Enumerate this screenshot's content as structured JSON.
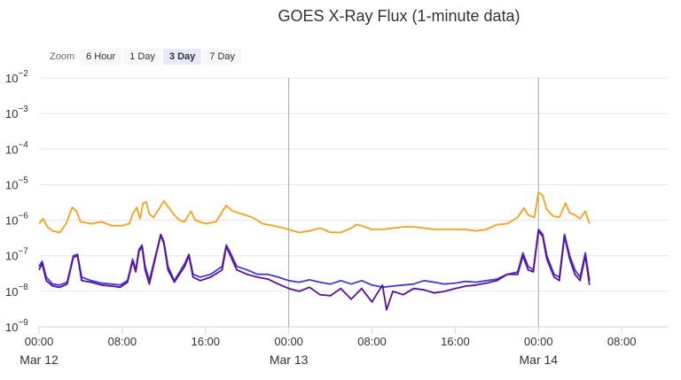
{
  "chart_data": {
    "type": "line",
    "title": "GOES X-Ray Flux (1-minute data)",
    "y_scale": "log",
    "ylim": [
      1e-09,
      0.01
    ],
    "y_ticks": [
      {
        "value": 1e-09,
        "base": "10",
        "exp": "−9"
      },
      {
        "value": 1e-08,
        "base": "10",
        "exp": "−8"
      },
      {
        "value": 1e-07,
        "base": "10",
        "exp": "−7"
      },
      {
        "value": 1e-06,
        "base": "10",
        "exp": "−6"
      },
      {
        "value": 1e-05,
        "base": "10",
        "exp": "−5"
      },
      {
        "value": 0.0001,
        "base": "10",
        "exp": "−4"
      },
      {
        "value": 0.001,
        "base": "10",
        "exp": "−3"
      },
      {
        "value": 0.01,
        "base": "10",
        "exp": "−2"
      }
    ],
    "x_ticks": [
      {
        "hour": 0,
        "label": "00:00",
        "date": "Mar 12"
      },
      {
        "hour": 8,
        "label": "08:00"
      },
      {
        "hour": 16,
        "label": "16:00"
      },
      {
        "hour": 24,
        "label": "00:00",
        "date": "Mar 13"
      },
      {
        "hour": 32,
        "label": "08:00"
      },
      {
        "hour": 40,
        "label": "16:00"
      },
      {
        "hour": 48,
        "label": "00:00",
        "date": "Mar 14"
      },
      {
        "hour": 56,
        "label": "08:00"
      }
    ],
    "day_boundaries": [
      24,
      48
    ],
    "xlim_hours": [
      0,
      60.5
    ],
    "series": [
      {
        "color": "#f4a21e",
        "values": [
          [
            0,
            8e-07
          ],
          [
            0.4,
            1.1e-06
          ],
          [
            0.8,
            6.5e-07
          ],
          [
            1.3,
            5e-07
          ],
          [
            2,
            4.5e-07
          ],
          [
            2.6,
            8e-07
          ],
          [
            3.2,
            2.3e-06
          ],
          [
            3.6,
            1.8e-06
          ],
          [
            4,
            9e-07
          ],
          [
            5,
            8e-07
          ],
          [
            6,
            9e-07
          ],
          [
            7,
            7e-07
          ],
          [
            8,
            7e-07
          ],
          [
            8.7,
            8e-07
          ],
          [
            9,
            1.5e-06
          ],
          [
            9.4,
            2.3e-06
          ],
          [
            9.7,
            1.1e-06
          ],
          [
            10,
            3e-06
          ],
          [
            10.3,
            3.3e-06
          ],
          [
            10.6,
            1.5e-06
          ],
          [
            11,
            1.2e-06
          ],
          [
            11.5,
            2e-06
          ],
          [
            12,
            3.5e-06
          ],
          [
            12.5,
            2.2e-06
          ],
          [
            13,
            1.4e-06
          ],
          [
            13.5,
            1e-06
          ],
          [
            14,
            9e-07
          ],
          [
            14.6,
            1.8e-06
          ],
          [
            15,
            1e-06
          ],
          [
            16,
            8e-07
          ],
          [
            17,
            9e-07
          ],
          [
            18,
            2.6e-06
          ],
          [
            18.6,
            1.8e-06
          ],
          [
            19.5,
            1.5e-06
          ],
          [
            20.5,
            1.2e-06
          ],
          [
            21.5,
            8e-07
          ],
          [
            22.5,
            7e-07
          ],
          [
            23.5,
            6e-07
          ],
          [
            24,
            5.5e-07
          ],
          [
            25,
            4.5e-07
          ],
          [
            26,
            5e-07
          ],
          [
            27,
            6e-07
          ],
          [
            28,
            4.6e-07
          ],
          [
            29,
            4.5e-07
          ],
          [
            30,
            6e-07
          ],
          [
            30.5,
            7.5e-07
          ],
          [
            31,
            7e-07
          ],
          [
            32,
            5.5e-07
          ],
          [
            33,
            5.5e-07
          ],
          [
            34,
            6e-07
          ],
          [
            35,
            6.5e-07
          ],
          [
            36,
            6.5e-07
          ],
          [
            37,
            6e-07
          ],
          [
            38,
            5.5e-07
          ],
          [
            39,
            5.5e-07
          ],
          [
            40,
            5.5e-07
          ],
          [
            41,
            5.5e-07
          ],
          [
            42,
            5e-07
          ],
          [
            43,
            5.5e-07
          ],
          [
            44,
            7.5e-07
          ],
          [
            45,
            8e-07
          ],
          [
            46,
            1.2e-06
          ],
          [
            46.6,
            2.2e-06
          ],
          [
            47,
            1.4e-06
          ],
          [
            47.6,
            1.2e-06
          ],
          [
            48,
            6e-06
          ],
          [
            48.4,
            5e-06
          ],
          [
            48.8,
            2e-06
          ],
          [
            49.4,
            1.3e-06
          ],
          [
            50,
            1.2e-06
          ],
          [
            50.6,
            3e-06
          ],
          [
            51,
            1.6e-06
          ],
          [
            51.5,
            1.4e-06
          ],
          [
            52,
            1.1e-06
          ],
          [
            52.5,
            1.8e-06
          ],
          [
            52.9,
            8e-07
          ]
        ]
      },
      {
        "color": "#3b3bd6",
        "values": [
          [
            0,
            5e-08
          ],
          [
            0.3,
            7e-08
          ],
          [
            0.7,
            2.5e-08
          ],
          [
            1.3,
            1.6e-08
          ],
          [
            2,
            1.5e-08
          ],
          [
            2.7,
            1.8e-08
          ],
          [
            3.3,
            1e-07
          ],
          [
            3.7,
            1.1e-07
          ],
          [
            4.1,
            2.5e-08
          ],
          [
            5,
            2e-08
          ],
          [
            6,
            1.7e-08
          ],
          [
            7,
            1.6e-08
          ],
          [
            7.8,
            1.5e-08
          ],
          [
            8.5,
            2e-08
          ],
          [
            9,
            8e-08
          ],
          [
            9.3,
            4e-08
          ],
          [
            9.6,
            1.5e-07
          ],
          [
            9.9,
            2e-07
          ],
          [
            10.2,
            5e-08
          ],
          [
            10.6,
            2e-08
          ],
          [
            11.2,
            1e-07
          ],
          [
            11.7,
            4e-07
          ],
          [
            12,
            2.5e-07
          ],
          [
            12.4,
            5e-08
          ],
          [
            13,
            2e-08
          ],
          [
            14,
            6e-08
          ],
          [
            14.4,
            1.1e-07
          ],
          [
            14.8,
            3e-08
          ],
          [
            15.5,
            2.5e-08
          ],
          [
            16.5,
            3e-08
          ],
          [
            17.6,
            5e-08
          ],
          [
            18,
            2e-07
          ],
          [
            18.4,
            1.2e-07
          ],
          [
            19,
            5e-08
          ],
          [
            20,
            4e-08
          ],
          [
            21,
            3e-08
          ],
          [
            22,
            3e-08
          ],
          [
            23,
            2.5e-08
          ],
          [
            24,
            2e-08
          ],
          [
            25,
            1.8e-08
          ],
          [
            26,
            2.1e-08
          ],
          [
            27,
            1.8e-08
          ],
          [
            28,
            1.6e-08
          ],
          [
            29,
            2e-08
          ],
          [
            30,
            1.6e-08
          ],
          [
            31,
            2e-08
          ],
          [
            32,
            1.5e-08
          ],
          [
            33,
            1.3e-08
          ],
          [
            34,
            1.4e-08
          ],
          [
            35,
            1.5e-08
          ],
          [
            36,
            1.6e-08
          ],
          [
            37,
            2e-08
          ],
          [
            38,
            1.8e-08
          ],
          [
            39,
            1.6e-08
          ],
          [
            40,
            1.7e-08
          ],
          [
            41,
            1.9e-08
          ],
          [
            42,
            1.8e-08
          ],
          [
            43,
            2e-08
          ],
          [
            44,
            2.2e-08
          ],
          [
            45,
            3e-08
          ],
          [
            46,
            3.5e-08
          ],
          [
            46.5,
            1.2e-07
          ],
          [
            47,
            5e-08
          ],
          [
            47.5,
            4e-08
          ],
          [
            48,
            5.5e-07
          ],
          [
            48.4,
            4e-07
          ],
          [
            48.8,
            1e-07
          ],
          [
            49.5,
            3e-08
          ],
          [
            50,
            2.5e-08
          ],
          [
            50.5,
            4e-07
          ],
          [
            51,
            1e-07
          ],
          [
            51.5,
            4e-08
          ],
          [
            52,
            2.5e-08
          ],
          [
            52.5,
            1.2e-07
          ],
          [
            52.9,
            2e-08
          ]
        ]
      },
      {
        "color": "#5b0f9e",
        "values": [
          [
            0,
            4e-08
          ],
          [
            0.3,
            6e-08
          ],
          [
            0.7,
            2e-08
          ],
          [
            1.3,
            1.4e-08
          ],
          [
            2,
            1.3e-08
          ],
          [
            2.7,
            1.6e-08
          ],
          [
            3.3,
            9e-08
          ],
          [
            3.7,
            1e-07
          ],
          [
            4.1,
            2e-08
          ],
          [
            5,
            1.8e-08
          ],
          [
            6,
            1.5e-08
          ],
          [
            7,
            1.4e-08
          ],
          [
            7.8,
            1.3e-08
          ],
          [
            8.5,
            1.8e-08
          ],
          [
            9,
            7e-08
          ],
          [
            9.3,
            3.5e-08
          ],
          [
            9.6,
            1.3e-07
          ],
          [
            9.9,
            1.8e-07
          ],
          [
            10.2,
            4e-08
          ],
          [
            10.6,
            1.6e-08
          ],
          [
            11.2,
            9e-08
          ],
          [
            11.7,
            3.8e-07
          ],
          [
            12,
            2.2e-07
          ],
          [
            12.4,
            4e-08
          ],
          [
            13,
            1.8e-08
          ],
          [
            14,
            5e-08
          ],
          [
            14.4,
            1e-07
          ],
          [
            14.8,
            2.5e-08
          ],
          [
            15.5,
            2e-08
          ],
          [
            16.5,
            2.5e-08
          ],
          [
            17.6,
            4e-08
          ],
          [
            18,
            1.8e-07
          ],
          [
            18.4,
            1e-07
          ],
          [
            19,
            4e-08
          ],
          [
            20,
            3e-08
          ],
          [
            21,
            2.5e-08
          ],
          [
            22,
            2.2e-08
          ],
          [
            23,
            1.6e-08
          ],
          [
            24,
            1.2e-08
          ],
          [
            25,
            1e-08
          ],
          [
            26,
            1.3e-08
          ],
          [
            27,
            8e-09
          ],
          [
            28,
            7.5e-09
          ],
          [
            29,
            1.2e-08
          ],
          [
            30,
            6e-09
          ],
          [
            31,
            1.2e-08
          ],
          [
            32,
            5e-09
          ],
          [
            33,
            1.5e-08
          ],
          [
            33.4,
            3e-09
          ],
          [
            34,
            1e-08
          ],
          [
            35,
            8e-09
          ],
          [
            36,
            1.2e-08
          ],
          [
            37,
            1.1e-08
          ],
          [
            38,
            9e-09
          ],
          [
            39,
            1e-08
          ],
          [
            40,
            1.2e-08
          ],
          [
            41,
            1.4e-08
          ],
          [
            42,
            1.5e-08
          ],
          [
            43,
            1.7e-08
          ],
          [
            44,
            2e-08
          ],
          [
            45,
            3e-08
          ],
          [
            46,
            3e-08
          ],
          [
            46.5,
            1e-07
          ],
          [
            47,
            4e-08
          ],
          [
            47.5,
            3.5e-08
          ],
          [
            48,
            5e-07
          ],
          [
            48.4,
            3.5e-07
          ],
          [
            48.8,
            8e-08
          ],
          [
            49.5,
            2.5e-08
          ],
          [
            50,
            2e-08
          ],
          [
            50.5,
            3.5e-07
          ],
          [
            51,
            8e-08
          ],
          [
            51.5,
            3e-08
          ],
          [
            52,
            2e-08
          ],
          [
            52.5,
            1e-07
          ],
          [
            52.9,
            1.5e-08
          ]
        ]
      }
    ]
  },
  "zoom": {
    "label": "Zoom",
    "buttons": [
      {
        "label": "6 Hour",
        "active": false
      },
      {
        "label": "1 Day",
        "active": false
      },
      {
        "label": "3 Day",
        "active": true
      },
      {
        "label": "7 Day",
        "active": false
      }
    ]
  }
}
